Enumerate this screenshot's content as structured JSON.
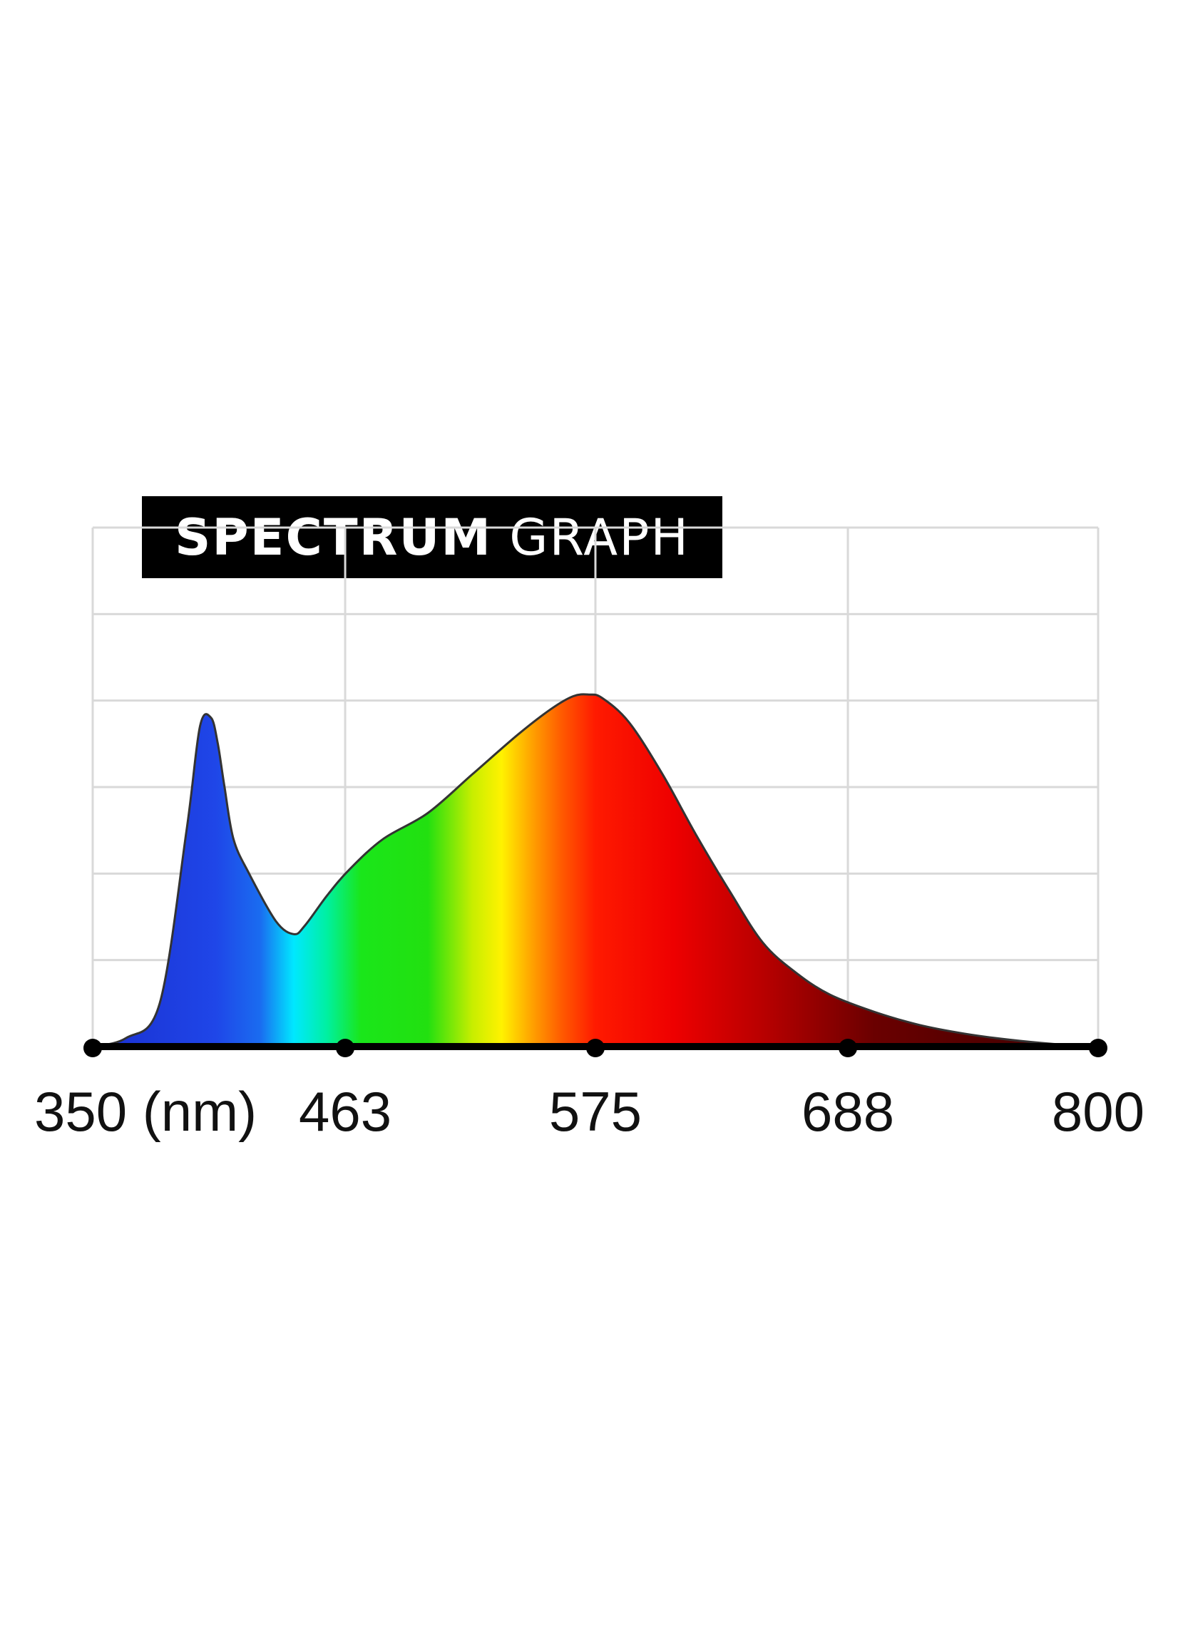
{
  "chart_data": {
    "type": "area",
    "title": {
      "bold": "SPECTRUM",
      "light": "GRAPH"
    },
    "x_unit": "nm",
    "xlim": [
      350,
      800
    ],
    "ylim": [
      0,
      6
    ],
    "grid": true,
    "x_ticks": [
      {
        "value": 350,
        "label": "350 (nm)"
      },
      {
        "value": 463,
        "label": "463"
      },
      {
        "value": 575,
        "label": "575"
      },
      {
        "value": 688,
        "label": "688"
      },
      {
        "value": 800,
        "label": "800"
      }
    ],
    "gridlines_x": [
      350,
      463,
      575,
      688,
      800
    ],
    "gridlines_y": [
      1,
      2,
      3,
      4,
      5,
      6
    ],
    "series": [
      {
        "x": [
          350,
          365,
          380,
          392,
          398,
          403,
          406,
          409,
          413,
          420,
          432,
          440,
          445,
          455,
          465,
          480,
          500,
          520,
          540,
          555,
          565,
          572,
          578,
          590,
          605,
          620,
          635,
          650,
          665,
          680,
          700,
          720,
          740,
          760,
          780,
          800
        ],
        "y": [
          0.0,
          0.1,
          0.5,
          2.5,
          3.7,
          3.8,
          3.5,
          3.0,
          2.4,
          2.0,
          1.45,
          1.3,
          1.4,
          1.75,
          2.05,
          2.4,
          2.7,
          3.15,
          3.6,
          3.9,
          4.05,
          4.07,
          4.03,
          3.75,
          3.15,
          2.45,
          1.8,
          1.2,
          0.85,
          0.6,
          0.4,
          0.25,
          0.15,
          0.08,
          0.03,
          0.0
        ]
      }
    ],
    "fill_gradient": [
      {
        "nm": 350,
        "color": "#1a2fd0"
      },
      {
        "nm": 405,
        "color": "#1f46e8"
      },
      {
        "nm": 425,
        "color": "#1a6cf0"
      },
      {
        "nm": 440,
        "color": "#00e8ff"
      },
      {
        "nm": 455,
        "color": "#00f0a0"
      },
      {
        "nm": 470,
        "color": "#1ae61a"
      },
      {
        "nm": 500,
        "color": "#22e010"
      },
      {
        "nm": 520,
        "color": "#c8ee00"
      },
      {
        "nm": 533,
        "color": "#fff200"
      },
      {
        "nm": 548,
        "color": "#ff9a00"
      },
      {
        "nm": 560,
        "color": "#ff5a00"
      },
      {
        "nm": 575,
        "color": "#ff1a00"
      },
      {
        "nm": 610,
        "color": "#ee0000"
      },
      {
        "nm": 650,
        "color": "#b80000"
      },
      {
        "nm": 700,
        "color": "#6a0000"
      },
      {
        "nm": 800,
        "color": "#3a0000"
      }
    ],
    "colors": {
      "grid": "#d9d9d9",
      "axis": "#000000",
      "outline": "#333333"
    }
  }
}
